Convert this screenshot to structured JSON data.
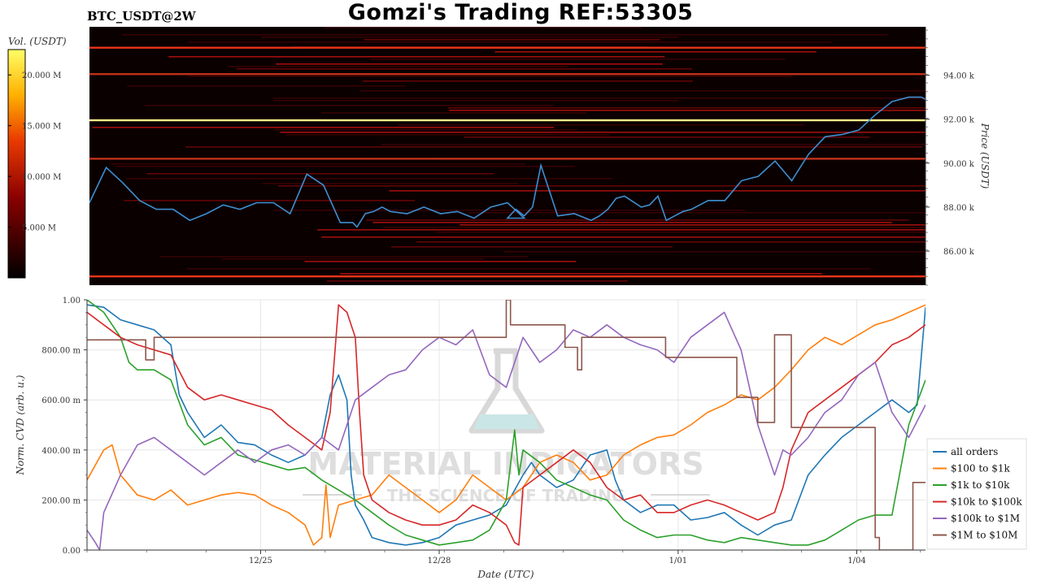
{
  "header": {
    "title": "Gomzi's Trading REF:53305",
    "pair": "BTC_USDT@2W"
  },
  "watermark": {
    "main": "MATERIAL INDICATORS",
    "sub": "THE SCIENCE OF TRADING"
  },
  "colors": {
    "price_line": "#3d8fd1",
    "heatmap_bg": "#0b0000",
    "grid": "#e6e6e6"
  },
  "chart_data": [
    {
      "type": "heatmap",
      "title": "",
      "colorbar_label": "Vol. (USDT)",
      "colorbar_ticks": [
        "20.000 M",
        "15.000 M",
        "10.000 M",
        "5.000 M"
      ],
      "colorbar_tick_values": [
        20,
        15,
        10,
        5
      ],
      "colorbar_range": [
        0,
        22.5
      ],
      "ylabel": "Price (USDT)",
      "y_ticks": [
        "94.00 k",
        "92.00 k",
        "90.00 k",
        "88.00 k",
        "86.00 k"
      ],
      "y_tick_values": [
        94000,
        92000,
        90000,
        88000,
        86000
      ],
      "ylim": [
        84450,
        96200
      ],
      "series": [
        {
          "name": "",
          "x": [
            0,
            0.02,
            0.04,
            0.06,
            0.08,
            0.1,
            0.12,
            0.14,
            0.16,
            0.18,
            0.2,
            0.22,
            0.24,
            0.26,
            0.28,
            0.3,
            0.315,
            0.32,
            0.33,
            0.34,
            0.35,
            0.36,
            0.38,
            0.4,
            0.42,
            0.44,
            0.46,
            0.48,
            0.5,
            0.52,
            0.5,
            0.5,
            0.51,
            0.52,
            0.53,
            0.54,
            0.56,
            0.58,
            0.6,
            0.61,
            0.62,
            0.63,
            0.64,
            0.66,
            0.67,
            0.68,
            0.69,
            0.7,
            0.71,
            0.72,
            0.74,
            0.76,
            0.78,
            0.8,
            0.82,
            0.84,
            0.86,
            0.88,
            0.9,
            0.92,
            0.94,
            0.96,
            0.98,
            0.99,
            0.995,
            1.0
          ],
          "y": [
            88200,
            89800,
            89100,
            88300,
            87900,
            87900,
            87400,
            87700,
            88100,
            87900,
            88200,
            88200,
            87700,
            89500,
            89000,
            87300,
            87300,
            87100,
            87700,
            87800,
            88000,
            87800,
            87700,
            88000,
            87700,
            87800,
            87500,
            88000,
            88200,
            87500,
            87500,
            87500,
            87900,
            87600,
            88000,
            89900,
            87600,
            87700,
            87400,
            87600,
            87900,
            88400,
            88500,
            88000,
            88100,
            88500,
            87400,
            87600,
            87800,
            87900,
            88300,
            88300,
            89200,
            89400,
            90100,
            89200,
            90400,
            91200,
            91300,
            91500,
            92200,
            92800,
            93000,
            93000,
            93000,
            92900
          ]
        }
      ],
      "levels": [
        {
          "price": 91950,
          "intensity": 1.0
        },
        {
          "price": 95250,
          "intensity": 0.55
        },
        {
          "price": 84850,
          "intensity": 0.55
        },
        {
          "price": 94050,
          "intensity": 0.4
        },
        {
          "price": 90200,
          "intensity": 0.3
        }
      ]
    },
    {
      "type": "line",
      "title": "",
      "xlabel": "Date (UTC)",
      "ylabel": "Norm. CVD (arb. u.)",
      "x_ticks": [
        "12/25",
        "12/28",
        "1/01",
        "1/04"
      ],
      "x_tick_positions": [
        0.207,
        0.42,
        0.705,
        0.918
      ],
      "y_ticks": [
        "1.00",
        "800.00 m",
        "600.00 m",
        "400.00 m",
        "200.00 m",
        "0.00"
      ],
      "y_tick_values": [
        1.0,
        0.8,
        0.6,
        0.4,
        0.2,
        0.0
      ],
      "ylim": [
        0,
        1
      ],
      "xlim": [
        0,
        1
      ],
      "grid": true,
      "legend_position": "right",
      "series": [
        {
          "name": "all orders",
          "color": "#1f77b4",
          "x": [
            0,
            0.02,
            0.04,
            0.06,
            0.08,
            0.1,
            0.11,
            0.12,
            0.14,
            0.16,
            0.18,
            0.2,
            0.22,
            0.24,
            0.26,
            0.28,
            0.29,
            0.3,
            0.31,
            0.315,
            0.32,
            0.33,
            0.34,
            0.36,
            0.38,
            0.4,
            0.42,
            0.44,
            0.46,
            0.48,
            0.5,
            0.52,
            0.53,
            0.54,
            0.56,
            0.58,
            0.6,
            0.62,
            0.63,
            0.64,
            0.66,
            0.68,
            0.7,
            0.72,
            0.74,
            0.76,
            0.78,
            0.8,
            0.82,
            0.84,
            0.86,
            0.88,
            0.9,
            0.92,
            0.94,
            0.96,
            0.98,
            0.99,
            1.0
          ],
          "y": [
            0.98,
            0.97,
            0.92,
            0.9,
            0.88,
            0.82,
            0.62,
            0.55,
            0.45,
            0.5,
            0.43,
            0.42,
            0.38,
            0.35,
            0.38,
            0.45,
            0.62,
            0.7,
            0.6,
            0.3,
            0.18,
            0.12,
            0.05,
            0.03,
            0.02,
            0.03,
            0.05,
            0.1,
            0.12,
            0.14,
            0.18,
            0.3,
            0.35,
            0.3,
            0.25,
            0.28,
            0.38,
            0.4,
            0.28,
            0.2,
            0.15,
            0.18,
            0.18,
            0.12,
            0.13,
            0.15,
            0.1,
            0.06,
            0.1,
            0.12,
            0.3,
            0.38,
            0.45,
            0.5,
            0.55,
            0.6,
            0.55,
            0.58,
            0.97
          ]
        },
        {
          "name": "$100 to $1k",
          "color": "#ff7f0e",
          "x": [
            0,
            0.02,
            0.03,
            0.04,
            0.06,
            0.08,
            0.1,
            0.12,
            0.14,
            0.16,
            0.18,
            0.2,
            0.22,
            0.24,
            0.26,
            0.27,
            0.28,
            0.285,
            0.29,
            0.3,
            0.32,
            0.34,
            0.36,
            0.38,
            0.4,
            0.42,
            0.44,
            0.46,
            0.48,
            0.5,
            0.52,
            0.54,
            0.56,
            0.58,
            0.6,
            0.62,
            0.64,
            0.66,
            0.68,
            0.7,
            0.72,
            0.74,
            0.76,
            0.78,
            0.8,
            0.82,
            0.84,
            0.86,
            0.88,
            0.9,
            0.92,
            0.94,
            0.96,
            0.98,
            1.0
          ],
          "y": [
            0.28,
            0.4,
            0.42,
            0.3,
            0.22,
            0.2,
            0.24,
            0.18,
            0.2,
            0.22,
            0.23,
            0.22,
            0.18,
            0.15,
            0.1,
            0.02,
            0.05,
            0.26,
            0.05,
            0.18,
            0.2,
            0.22,
            0.3,
            0.25,
            0.2,
            0.15,
            0.2,
            0.3,
            0.25,
            0.2,
            0.25,
            0.35,
            0.38,
            0.35,
            0.28,
            0.3,
            0.38,
            0.42,
            0.45,
            0.46,
            0.5,
            0.55,
            0.58,
            0.62,
            0.6,
            0.65,
            0.72,
            0.8,
            0.85,
            0.82,
            0.86,
            0.9,
            0.92,
            0.95,
            0.98
          ]
        },
        {
          "name": "$1k to $10k",
          "color": "#2ca02c",
          "x": [
            0,
            0.02,
            0.04,
            0.05,
            0.06,
            0.08,
            0.1,
            0.12,
            0.14,
            0.16,
            0.18,
            0.2,
            0.22,
            0.24,
            0.26,
            0.28,
            0.3,
            0.32,
            0.34,
            0.36,
            0.38,
            0.4,
            0.42,
            0.44,
            0.46,
            0.48,
            0.5,
            0.51,
            0.515,
            0.52,
            0.54,
            0.56,
            0.58,
            0.6,
            0.62,
            0.64,
            0.66,
            0.68,
            0.7,
            0.72,
            0.74,
            0.76,
            0.78,
            0.8,
            0.82,
            0.84,
            0.86,
            0.88,
            0.9,
            0.92,
            0.94,
            0.96,
            0.98,
            1.0
          ],
          "y": [
            1.0,
            0.95,
            0.85,
            0.75,
            0.72,
            0.72,
            0.68,
            0.5,
            0.42,
            0.45,
            0.38,
            0.36,
            0.34,
            0.32,
            0.33,
            0.28,
            0.24,
            0.2,
            0.15,
            0.1,
            0.06,
            0.04,
            0.02,
            0.03,
            0.04,
            0.08,
            0.2,
            0.48,
            0.3,
            0.4,
            0.35,
            0.28,
            0.25,
            0.22,
            0.2,
            0.12,
            0.08,
            0.05,
            0.06,
            0.06,
            0.04,
            0.03,
            0.05,
            0.04,
            0.03,
            0.02,
            0.02,
            0.04,
            0.08,
            0.12,
            0.14,
            0.14,
            0.5,
            0.68
          ]
        },
        {
          "name": "$10k to $100k",
          "color": "#d62728",
          "x": [
            0,
            0.02,
            0.04,
            0.06,
            0.08,
            0.1,
            0.12,
            0.14,
            0.16,
            0.18,
            0.2,
            0.22,
            0.24,
            0.26,
            0.28,
            0.29,
            0.3,
            0.31,
            0.32,
            0.325,
            0.33,
            0.34,
            0.36,
            0.38,
            0.4,
            0.42,
            0.44,
            0.46,
            0.48,
            0.5,
            0.51,
            0.515,
            0.52,
            0.54,
            0.56,
            0.58,
            0.6,
            0.62,
            0.64,
            0.66,
            0.68,
            0.7,
            0.72,
            0.74,
            0.76,
            0.78,
            0.8,
            0.82,
            0.83,
            0.84,
            0.86,
            0.88,
            0.9,
            0.92,
            0.94,
            0.96,
            0.98,
            1.0
          ],
          "y": [
            0.95,
            0.9,
            0.85,
            0.82,
            0.8,
            0.78,
            0.65,
            0.6,
            0.62,
            0.6,
            0.58,
            0.56,
            0.5,
            0.45,
            0.4,
            0.55,
            0.98,
            0.95,
            0.85,
            0.55,
            0.3,
            0.2,
            0.15,
            0.12,
            0.1,
            0.1,
            0.12,
            0.18,
            0.15,
            0.1,
            0.03,
            0.02,
            0.25,
            0.3,
            0.35,
            0.4,
            0.35,
            0.25,
            0.2,
            0.22,
            0.15,
            0.15,
            0.18,
            0.2,
            0.18,
            0.15,
            0.12,
            0.15,
            0.25,
            0.4,
            0.55,
            0.6,
            0.65,
            0.7,
            0.75,
            0.82,
            0.85,
            0.9
          ]
        },
        {
          "name": "$100k to $1M",
          "color": "#9467bd",
          "x": [
            0,
            0.01,
            0.015,
            0.02,
            0.04,
            0.06,
            0.08,
            0.1,
            0.12,
            0.14,
            0.16,
            0.18,
            0.2,
            0.22,
            0.24,
            0.26,
            0.28,
            0.3,
            0.32,
            0.34,
            0.36,
            0.38,
            0.4,
            0.42,
            0.44,
            0.46,
            0.48,
            0.5,
            0.52,
            0.54,
            0.56,
            0.58,
            0.6,
            0.62,
            0.64,
            0.66,
            0.68,
            0.7,
            0.72,
            0.74,
            0.76,
            0.78,
            0.8,
            0.82,
            0.83,
            0.84,
            0.86,
            0.88,
            0.9,
            0.92,
            0.94,
            0.96,
            0.98,
            1.0
          ],
          "y": [
            0.08,
            0.03,
            0.0,
            0.15,
            0.3,
            0.42,
            0.45,
            0.4,
            0.35,
            0.3,
            0.35,
            0.4,
            0.35,
            0.4,
            0.42,
            0.38,
            0.45,
            0.4,
            0.6,
            0.65,
            0.7,
            0.72,
            0.8,
            0.85,
            0.82,
            0.88,
            0.7,
            0.65,
            0.85,
            0.75,
            0.8,
            0.88,
            0.85,
            0.9,
            0.85,
            0.82,
            0.8,
            0.75,
            0.85,
            0.9,
            0.95,
            0.8,
            0.5,
            0.3,
            0.4,
            0.38,
            0.45,
            0.55,
            0.6,
            0.7,
            0.75,
            0.55,
            0.45,
            0.58
          ]
        },
        {
          "name": "$1M to $10M",
          "color": "#8c564b",
          "x": [
            0,
            0.07,
            0.07,
            0.08,
            0.08,
            0.5,
            0.5,
            0.505,
            0.505,
            0.57,
            0.57,
            0.585,
            0.585,
            0.59,
            0.59,
            0.6,
            0.6,
            0.69,
            0.69,
            0.71,
            0.71,
            0.775,
            0.775,
            0.8,
            0.8,
            0.82,
            0.82,
            0.84,
            0.84,
            0.855,
            0.855,
            0.94,
            0.94,
            0.945,
            0.945,
            0.948,
            0.948,
            0.985,
            0.985,
            1.0
          ],
          "y": [
            0.84,
            0.84,
            0.76,
            0.76,
            0.85,
            0.85,
            1.0,
            1.0,
            0.9,
            0.9,
            0.81,
            0.81,
            0.72,
            0.72,
            0.85,
            0.85,
            0.85,
            0.85,
            0.77,
            0.77,
            0.77,
            0.77,
            0.61,
            0.61,
            0.51,
            0.51,
            0.86,
            0.86,
            0.49,
            0.49,
            0.49,
            0.49,
            0.05,
            0.05,
            0.0,
            0.0,
            0.0,
            0.0,
            0.27,
            0.27
          ]
        }
      ]
    }
  ]
}
